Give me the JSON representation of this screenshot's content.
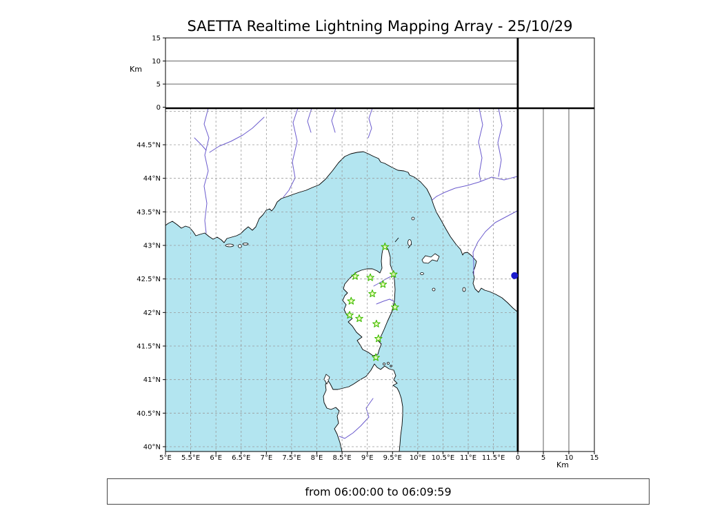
{
  "title": "SAETTA Realtime Lightning Mapping Array - 25/10/29",
  "time_range_label": "from 06:00:00 to 06:09:59",
  "colors": {
    "sea": "#b3e5f0",
    "land": "#ffffff",
    "coastline": "#000000",
    "river": "#6a5acd",
    "grid": "#999999",
    "station_stroke": "#3dbb00",
    "station_fill": "#eaffb0",
    "event_dot": "#1a1acc",
    "frame": "#000000"
  },
  "axes": {
    "altitude_label": "Km",
    "distance_label": "Km",
    "top_altitude_ticks": [
      "15",
      "10",
      "5",
      "0"
    ],
    "latitude_ticks": [
      "44.5°N",
      "44°N",
      "43.5°N",
      "43°N",
      "42.5°N",
      "42°N",
      "41.5°N",
      "41°N",
      "40.5°N",
      "40°N"
    ],
    "longitude_ticks": [
      "5°E",
      "5.5°E",
      "6°E",
      "6.5°E",
      "7°E",
      "7.5°E",
      "8°E",
      "8.5°E",
      "9°E",
      "9.5°E",
      "10°E",
      "10.5°E",
      "11°E",
      "11.5°E"
    ],
    "right_distance_ticks": [
      "0",
      "5",
      "10",
      "15"
    ]
  },
  "chart_data": {
    "type": "scatter",
    "title": "SAETTA Realtime Lightning Mapping Array - 25/10/29",
    "time_window": "from 06:00:00 to 06:09:59",
    "map_extent": {
      "lon_min": 5.0,
      "lon_max": 12.0,
      "lat_min": 39.9,
      "lat_max": 45.05
    },
    "grid_step_deg": 0.5,
    "altitude_axis": {
      "unit": "Km",
      "min": 0,
      "max": 15,
      "ticks": [
        0,
        5,
        10,
        15
      ]
    },
    "stations": [
      {
        "lon": 9.35,
        "lat": 42.98
      },
      {
        "lon": 8.76,
        "lat": 42.54
      },
      {
        "lon": 9.06,
        "lat": 42.52
      },
      {
        "lon": 9.52,
        "lat": 42.57
      },
      {
        "lon": 9.31,
        "lat": 42.42
      },
      {
        "lon": 9.1,
        "lat": 42.28
      },
      {
        "lon": 8.68,
        "lat": 42.17
      },
      {
        "lon": 9.55,
        "lat": 42.08
      },
      {
        "lon": 8.65,
        "lat": 41.96
      },
      {
        "lon": 8.84,
        "lat": 41.91
      },
      {
        "lon": 9.18,
        "lat": 41.83
      },
      {
        "lon": 9.22,
        "lat": 41.61
      },
      {
        "lon": 9.17,
        "lat": 41.33
      }
    ],
    "events": [
      {
        "lon": 11.92,
        "lat": 42.55
      }
    ]
  }
}
